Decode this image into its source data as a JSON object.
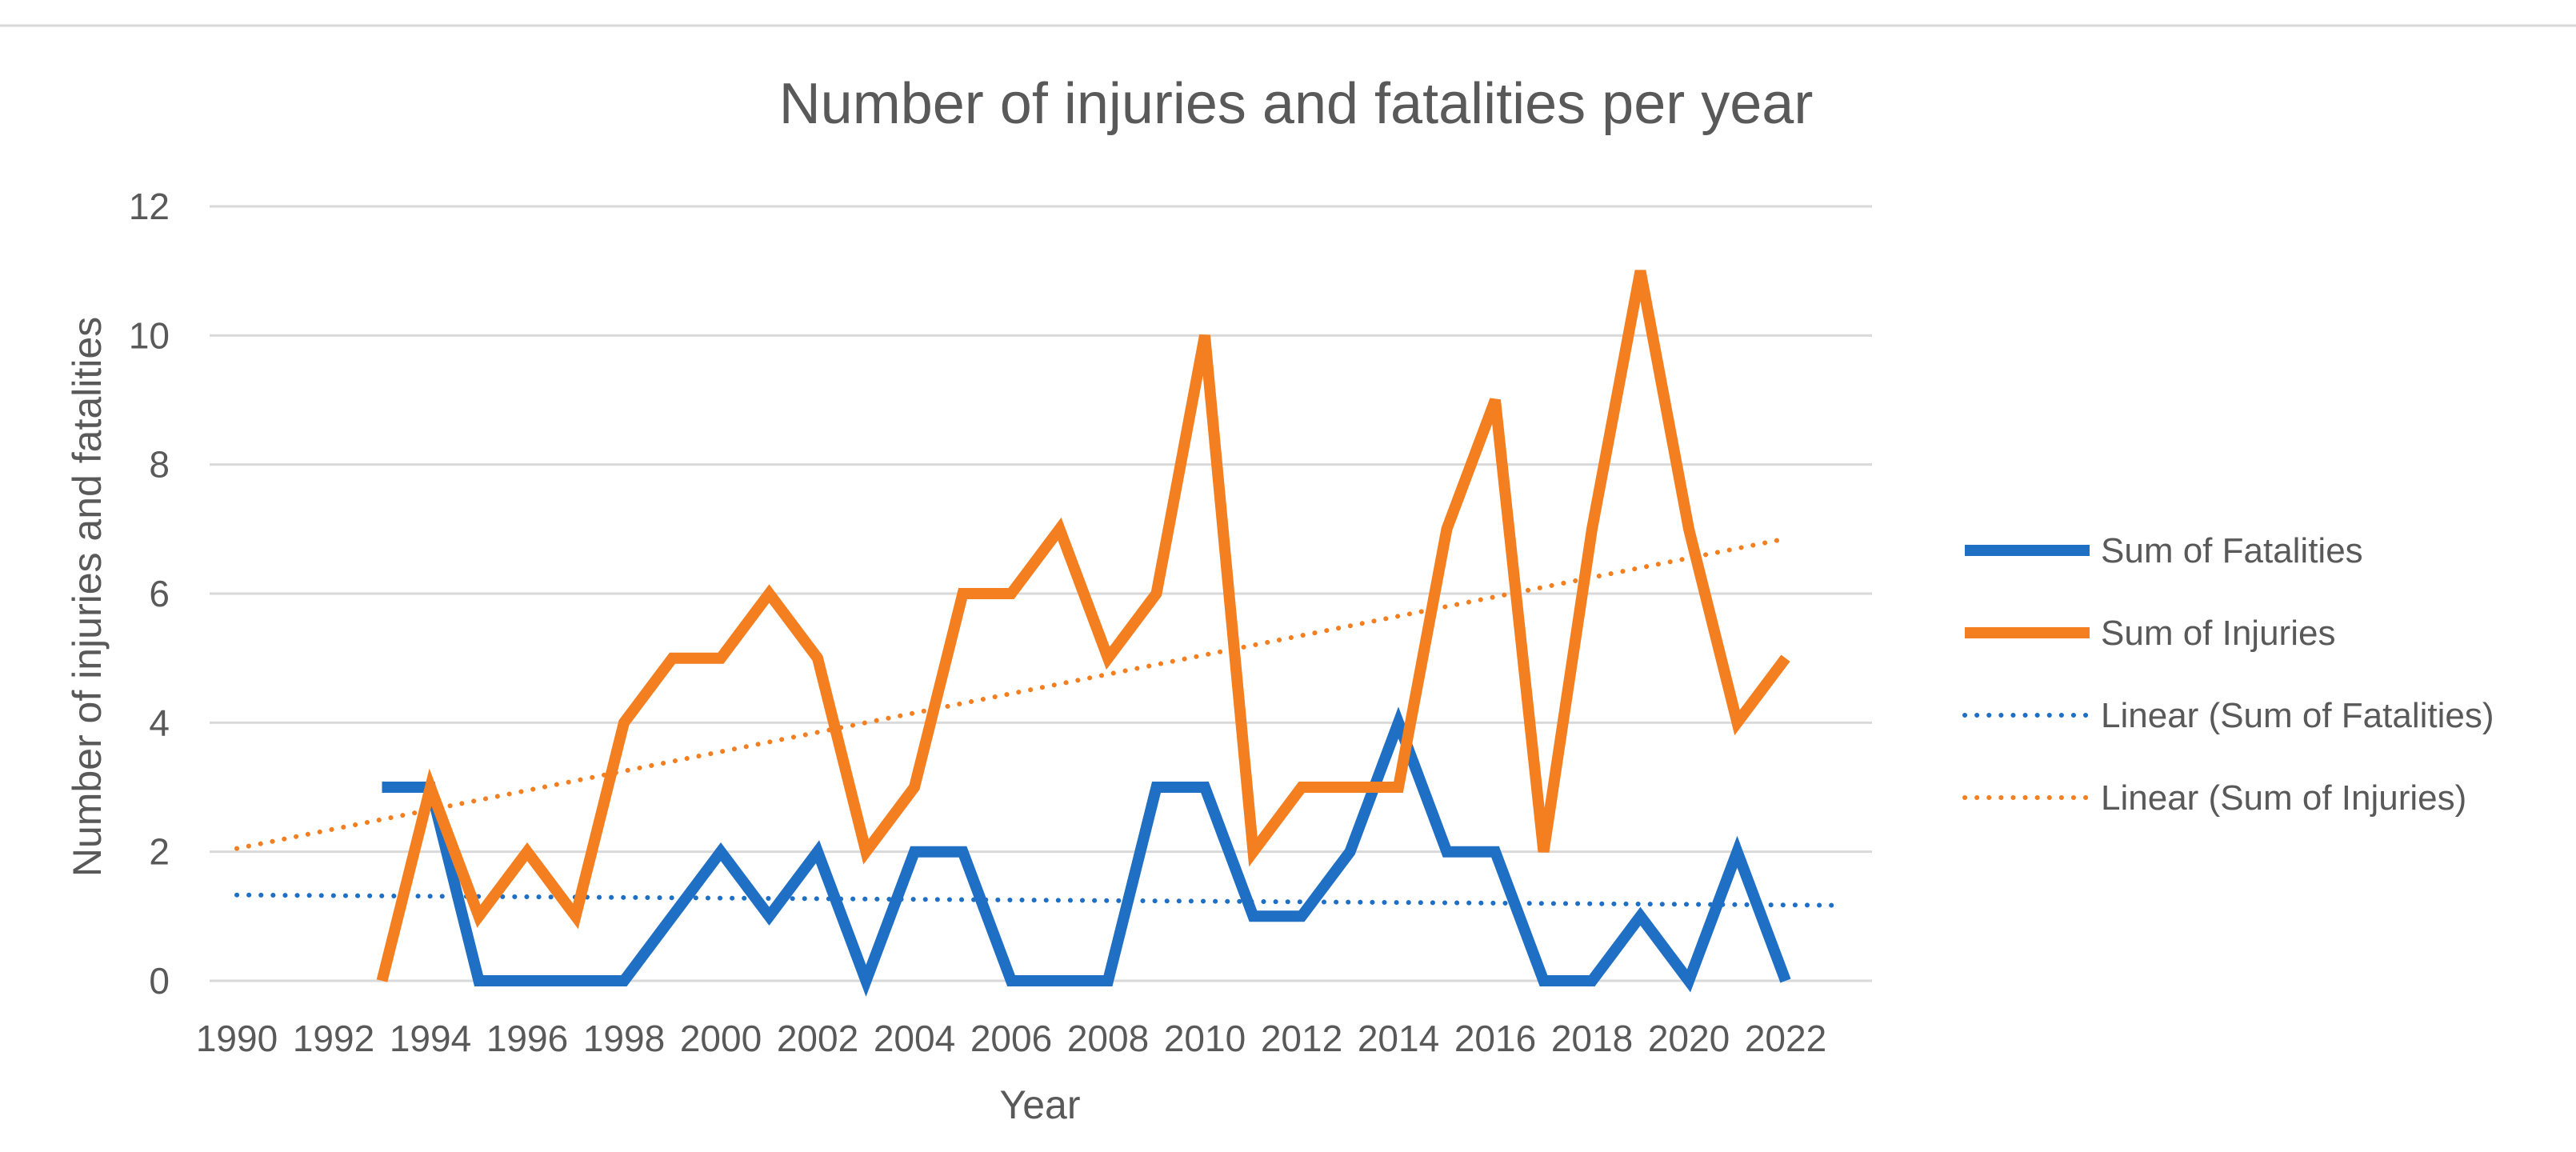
{
  "chart_data": {
    "type": "line",
    "title": "Number of injuries and fatalities per year",
    "xlabel": "Year",
    "ylabel": "Number of injuries and fatalities",
    "xlim": [
      1990,
      2023
    ],
    "ylim": [
      0,
      12
    ],
    "y_ticks": [
      0,
      2,
      4,
      6,
      8,
      10,
      12
    ],
    "x_ticks": [
      1990,
      1992,
      1994,
      1996,
      1998,
      2000,
      2002,
      2004,
      2006,
      2008,
      2010,
      2012,
      2014,
      2016,
      2018,
      2020,
      2022
    ],
    "x_tick_labels": [
      "1990",
      "1992",
      "1994",
      "1996",
      "1998",
      "2000",
      "2002",
      "2004",
      "2006",
      "2008",
      "2010",
      "2012",
      "2014",
      "2016",
      "2018",
      "2020",
      "2022"
    ],
    "grid": true,
    "legend_position": "right",
    "series": [
      {
        "name": "Sum of Fatalities",
        "color": "#1f6fc5",
        "style": "solid",
        "x": [
          1993,
          1994,
          1995,
          1996,
          1997,
          1998,
          1999,
          2000,
          2001,
          2002,
          2003,
          2004,
          2005,
          2006,
          2007,
          2008,
          2009,
          2010,
          2011,
          2012,
          2013,
          2014,
          2015,
          2016,
          2017,
          2018,
          2019,
          2020,
          2021,
          2022
        ],
        "values": [
          3,
          3,
          0,
          0,
          0,
          0,
          1,
          2,
          1,
          2,
          0,
          2,
          2,
          0,
          0,
          0,
          3,
          3,
          1,
          1,
          2,
          4,
          2,
          2,
          0,
          0,
          1,
          0,
          2,
          0
        ]
      },
      {
        "name": "Sum of Injuries",
        "color": "#f47f20",
        "style": "solid",
        "x": [
          1993,
          1994,
          1995,
          1996,
          1997,
          1998,
          1999,
          2000,
          2001,
          2002,
          2003,
          2004,
          2005,
          2006,
          2007,
          2008,
          2009,
          2010,
          2011,
          2012,
          2013,
          2014,
          2015,
          2016,
          2017,
          2018,
          2019,
          2020,
          2021,
          2022
        ],
        "values": [
          0,
          3,
          1,
          2,
          1,
          4,
          5,
          5,
          6,
          5,
          2,
          3,
          6,
          6,
          7,
          5,
          6,
          10,
          2,
          3,
          3,
          3,
          7,
          9,
          2,
          7,
          11,
          7,
          4,
          5
        ]
      },
      {
        "name": "Linear (Sum of Fatalities)",
        "color": "#1f6fc5",
        "style": "dotted",
        "x": [
          1990,
          2023
        ],
        "values": [
          1.33,
          1.17
        ]
      },
      {
        "name": "Linear (Sum of Injuries)",
        "color": "#f47f20",
        "style": "dotted",
        "x": [
          1990,
          2022
        ],
        "values": [
          2.05,
          6.85
        ]
      }
    ]
  }
}
